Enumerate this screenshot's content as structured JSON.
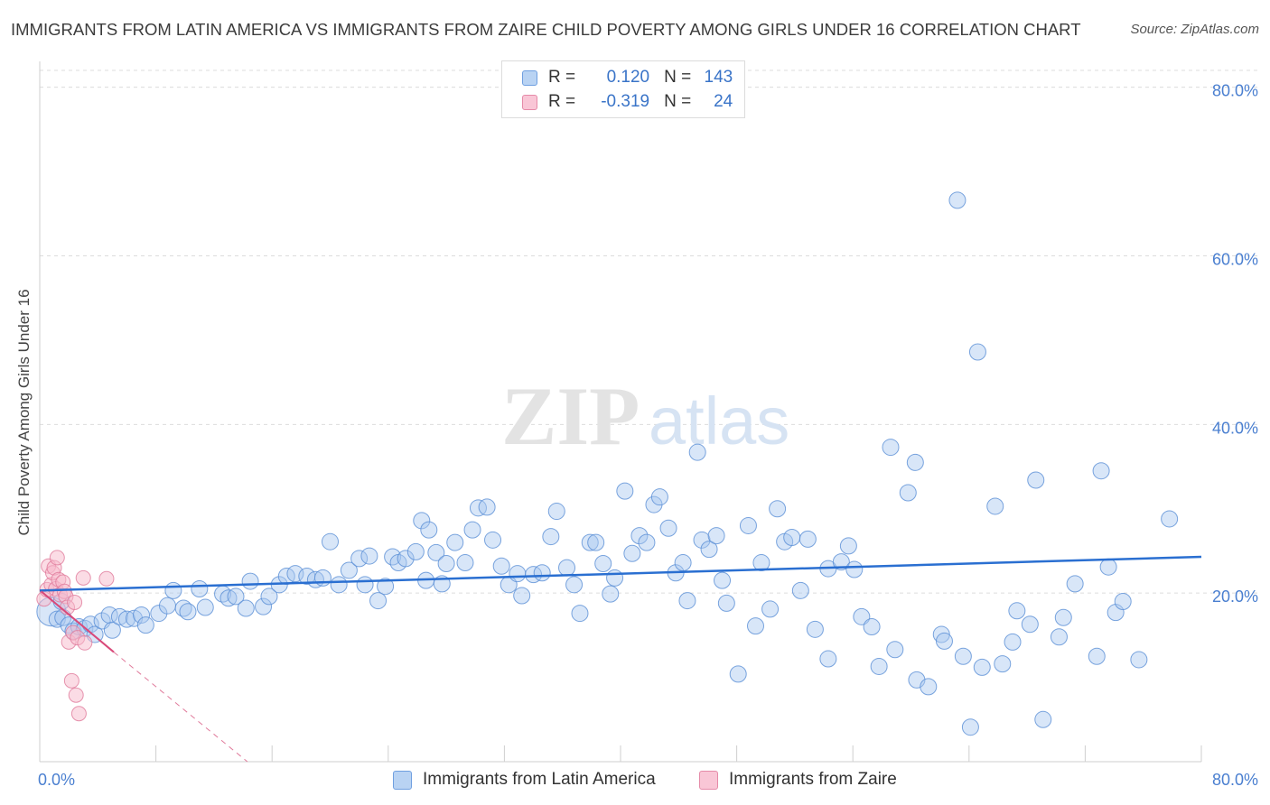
{
  "title": "IMMIGRANTS FROM LATIN AMERICA VS IMMIGRANTS FROM ZAIRE CHILD POVERTY AMONG GIRLS UNDER 16 CORRELATION CHART",
  "source": "Source: ZipAtlas.com",
  "watermark": {
    "zip": "ZIP",
    "atlas": "atlas"
  },
  "colors": {
    "latin_fill": "#a9c8f0",
    "latin_stroke": "#5a8fd6",
    "latin_line": "#2a6fd1",
    "zaire_fill": "#f7b9cc",
    "zaire_stroke": "#e07a9b",
    "zaire_line": "#d94a7a",
    "grid": "#dcdcdc",
    "tick_text": "#4a7fd0"
  },
  "legend": {
    "rows": [
      {
        "r_label": "R =",
        "r_value": "0.120",
        "n_label": "N =",
        "n_value": "143"
      },
      {
        "r_label": "R =",
        "r_value": "-0.319",
        "n_label": "N =",
        "n_value": "24"
      }
    ]
  },
  "chart_data": {
    "type": "scatter",
    "title": "IMMIGRANTS FROM LATIN AMERICA VS IMMIGRANTS FROM ZAIRE CHILD POVERTY AMONG GIRLS UNDER 16 CORRELATION CHART",
    "xlabel": "",
    "ylabel": "Child Poverty Among Girls Under 16",
    "xlim": [
      0,
      80
    ],
    "ylim": [
      0,
      82
    ],
    "x_tick_labels": [
      "0.0%",
      "80.0%"
    ],
    "y_ticks": [
      {
        "value": 20,
        "label": "20.0%"
      },
      {
        "value": 40,
        "label": "40.0%"
      },
      {
        "value": 60,
        "label": "60.0%"
      },
      {
        "value": 80,
        "label": "80.0%"
      }
    ],
    "grid": true,
    "legend_position": "top-center",
    "series": [
      {
        "name": "Immigrants from Latin America",
        "trend": {
          "x": [
            0,
            80
          ],
          "y": [
            20.3,
            24.3
          ]
        },
        "points": [
          [
            0.8,
            17.8
          ],
          [
            1.2,
            16.9
          ],
          [
            1.6,
            17.1
          ],
          [
            2.0,
            16.2
          ],
          [
            2.3,
            15.5
          ],
          [
            2.7,
            16.0
          ],
          [
            3.1,
            15.8
          ],
          [
            3.5,
            16.3
          ],
          [
            3.8,
            15.1
          ],
          [
            4.3,
            16.7
          ],
          [
            4.8,
            17.4
          ],
          [
            5.0,
            15.6
          ],
          [
            5.5,
            17.2
          ],
          [
            6.0,
            16.9
          ],
          [
            6.5,
            17.0
          ],
          [
            7.0,
            17.4
          ],
          [
            7.3,
            16.2
          ],
          [
            8.2,
            17.6
          ],
          [
            8.8,
            18.5
          ],
          [
            9.2,
            20.3
          ],
          [
            9.9,
            18.2
          ],
          [
            10.2,
            17.8
          ],
          [
            11.0,
            20.5
          ],
          [
            11.4,
            18.3
          ],
          [
            12.6,
            19.9
          ],
          [
            13.0,
            19.4
          ],
          [
            13.5,
            19.6
          ],
          [
            14.2,
            18.2
          ],
          [
            14.5,
            21.4
          ],
          [
            15.4,
            18.4
          ],
          [
            15.8,
            19.6
          ],
          [
            16.5,
            21.0
          ],
          [
            17.0,
            22.0
          ],
          [
            17.6,
            22.3
          ],
          [
            18.4,
            22.0
          ],
          [
            19.0,
            21.6
          ],
          [
            19.5,
            21.8
          ],
          [
            20.0,
            26.1
          ],
          [
            20.6,
            21.0
          ],
          [
            21.3,
            22.7
          ],
          [
            22.0,
            24.1
          ],
          [
            22.4,
            21.0
          ],
          [
            22.7,
            24.4
          ],
          [
            23.3,
            19.1
          ],
          [
            23.8,
            20.8
          ],
          [
            24.3,
            24.3
          ],
          [
            24.7,
            23.6
          ],
          [
            25.2,
            24.1
          ],
          [
            25.9,
            24.9
          ],
          [
            26.3,
            28.6
          ],
          [
            26.8,
            27.5
          ],
          [
            27.3,
            24.8
          ],
          [
            27.7,
            21.1
          ],
          [
            28.0,
            23.5
          ],
          [
            28.6,
            26.0
          ],
          [
            29.3,
            23.6
          ],
          [
            29.8,
            27.5
          ],
          [
            30.2,
            30.1
          ],
          [
            30.8,
            30.2
          ],
          [
            31.2,
            26.3
          ],
          [
            31.8,
            23.2
          ],
          [
            32.3,
            21.0
          ],
          [
            32.9,
            22.3
          ],
          [
            33.2,
            19.7
          ],
          [
            34.0,
            22.2
          ],
          [
            34.6,
            22.4
          ],
          [
            35.2,
            26.7
          ],
          [
            35.6,
            29.7
          ],
          [
            36.3,
            23.0
          ],
          [
            36.8,
            21.0
          ],
          [
            37.2,
            17.6
          ],
          [
            37.9,
            26.0
          ],
          [
            38.3,
            26.0
          ],
          [
            38.8,
            23.5
          ],
          [
            39.3,
            19.9
          ],
          [
            39.6,
            21.8
          ],
          [
            40.3,
            32.1
          ],
          [
            40.8,
            24.7
          ],
          [
            41.3,
            26.8
          ],
          [
            41.8,
            26.0
          ],
          [
            42.3,
            30.5
          ],
          [
            42.7,
            31.4
          ],
          [
            43.3,
            27.7
          ],
          [
            43.8,
            22.4
          ],
          [
            44.3,
            23.6
          ],
          [
            44.6,
            19.1
          ],
          [
            45.3,
            36.7
          ],
          [
            45.6,
            26.3
          ],
          [
            46.1,
            25.2
          ],
          [
            46.6,
            26.8
          ],
          [
            47.0,
            21.5
          ],
          [
            47.3,
            18.8
          ],
          [
            48.1,
            10.4
          ],
          [
            48.8,
            28.0
          ],
          [
            49.3,
            16.1
          ],
          [
            49.7,
            23.6
          ],
          [
            50.3,
            18.1
          ],
          [
            50.8,
            30.0
          ],
          [
            51.3,
            26.1
          ],
          [
            51.8,
            26.6
          ],
          [
            52.4,
            20.3
          ],
          [
            52.9,
            26.4
          ],
          [
            53.4,
            15.7
          ],
          [
            54.3,
            22.9
          ],
          [
            54.3,
            12.2
          ],
          [
            55.2,
            23.7
          ],
          [
            55.7,
            25.6
          ],
          [
            56.1,
            22.8
          ],
          [
            56.6,
            17.2
          ],
          [
            57.3,
            16.0
          ],
          [
            57.8,
            11.3
          ],
          [
            58.6,
            37.3
          ],
          [
            58.9,
            13.3
          ],
          [
            59.8,
            31.9
          ],
          [
            60.3,
            35.5
          ],
          [
            60.4,
            9.7
          ],
          [
            61.2,
            8.9
          ],
          [
            62.1,
            15.1
          ],
          [
            62.3,
            14.3
          ],
          [
            63.2,
            66.6
          ],
          [
            63.6,
            12.5
          ],
          [
            64.1,
            4.1
          ],
          [
            64.6,
            48.6
          ],
          [
            64.9,
            11.2
          ],
          [
            65.8,
            30.3
          ],
          [
            66.3,
            11.6
          ],
          [
            67.0,
            14.2
          ],
          [
            67.3,
            17.9
          ],
          [
            68.2,
            16.3
          ],
          [
            68.6,
            33.4
          ],
          [
            69.1,
            5.0
          ],
          [
            70.2,
            14.8
          ],
          [
            70.5,
            17.1
          ],
          [
            71.3,
            21.1
          ],
          [
            72.8,
            12.5
          ],
          [
            73.1,
            34.5
          ],
          [
            73.6,
            23.1
          ],
          [
            74.1,
            17.7
          ],
          [
            74.6,
            19.0
          ],
          [
            75.7,
            12.1
          ],
          [
            77.8,
            28.8
          ],
          [
            1.5,
            19.0
          ],
          [
            26.6,
            21.5
          ]
        ],
        "sizes": {
          "0.8,17.8": 3
        }
      },
      {
        "name": "Immigrants from Zaire",
        "trend_solid": {
          "x": [
            0.1,
            5.1
          ],
          "y": [
            20.2,
            13.0
          ]
        },
        "trend_dashed": {
          "x": [
            5.1,
            14.3
          ],
          "y": [
            13.0,
            0
          ]
        },
        "points": [
          [
            0.3,
            19.3
          ],
          [
            0.5,
            20.4
          ],
          [
            0.6,
            23.2
          ],
          [
            0.8,
            21.0
          ],
          [
            0.9,
            22.4
          ],
          [
            1.0,
            23.0
          ],
          [
            1.1,
            20.5
          ],
          [
            1.2,
            24.2
          ],
          [
            1.3,
            21.6
          ],
          [
            1.4,
            19.8
          ],
          [
            1.6,
            21.3
          ],
          [
            1.7,
            20.2
          ],
          [
            1.8,
            19.6
          ],
          [
            1.9,
            18.3
          ],
          [
            2.0,
            14.2
          ],
          [
            2.2,
            9.6
          ],
          [
            2.3,
            15.3
          ],
          [
            2.4,
            18.9
          ],
          [
            2.5,
            7.9
          ],
          [
            2.6,
            14.7
          ],
          [
            2.7,
            5.7
          ],
          [
            3.0,
            21.8
          ],
          [
            3.1,
            14.1
          ],
          [
            4.6,
            21.7
          ]
        ]
      }
    ]
  }
}
